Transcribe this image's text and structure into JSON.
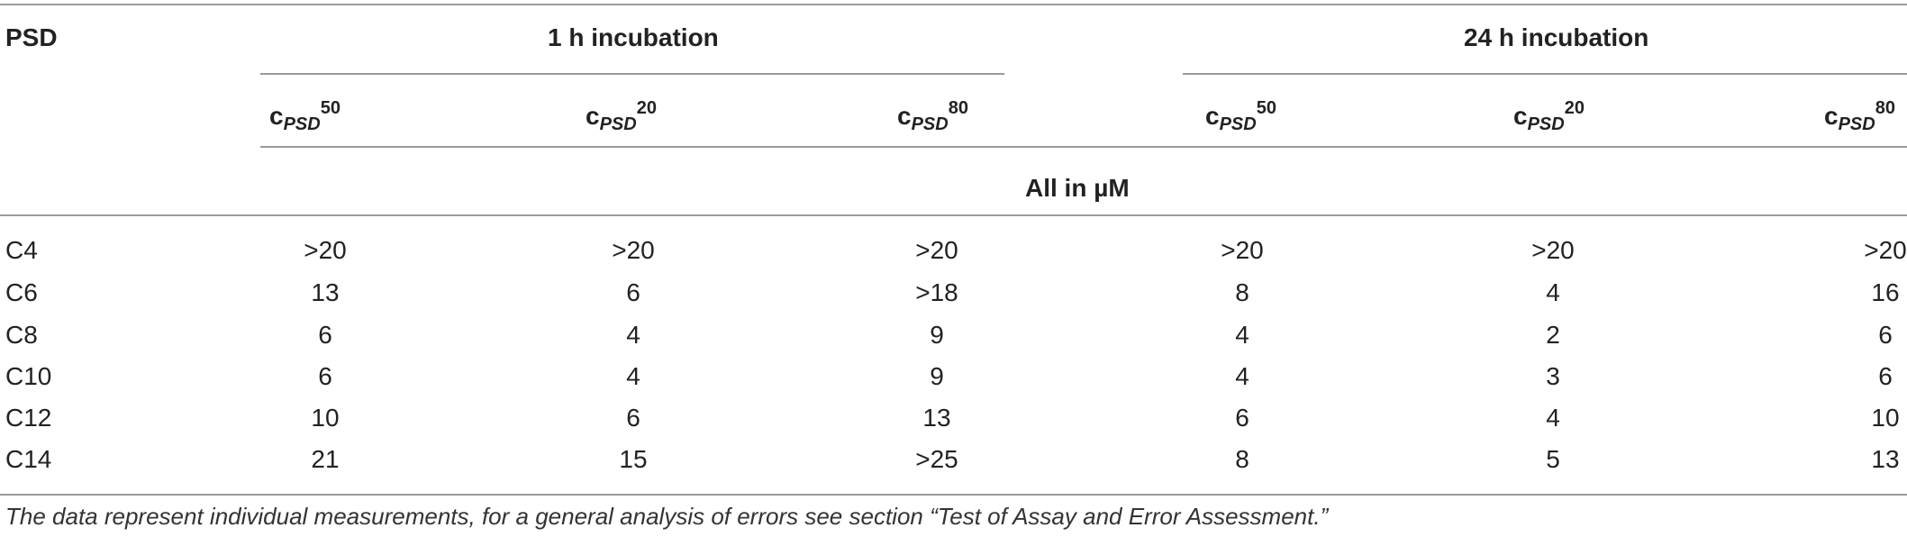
{
  "table": {
    "row_header": "PSD",
    "groups": [
      {
        "label": "1 h incubation"
      },
      {
        "label": "24 h incubation"
      }
    ],
    "subcolumns": [
      {
        "base": "c",
        "sub": "PSD",
        "sup": "50"
      },
      {
        "base": "c",
        "sub": "PSD",
        "sup": "20"
      },
      {
        "base": "c",
        "sub": "PSD",
        "sup": "80"
      },
      {
        "base": "c",
        "sub": "PSD",
        "sup": "50"
      },
      {
        "base": "c",
        "sub": "PSD",
        "sup": "20"
      },
      {
        "base": "c",
        "sub": "PSD",
        "sup": "80"
      }
    ],
    "units_label": "All in µM",
    "rows": [
      {
        "label": "C4",
        "values": [
          ">20",
          ">20",
          ">20",
          ">20",
          ">20",
          ">20"
        ]
      },
      {
        "label": "C6",
        "values": [
          "13",
          "6",
          ">18",
          "8",
          "4",
          "16"
        ]
      },
      {
        "label": "C8",
        "values": [
          "6",
          "4",
          "9",
          "4",
          "2",
          "6"
        ]
      },
      {
        "label": "C10",
        "values": [
          "6",
          "4",
          "9",
          "4",
          "3",
          "6"
        ]
      },
      {
        "label": "C12",
        "values": [
          "10",
          "6",
          "13",
          "6",
          "4",
          "10"
        ]
      },
      {
        "label": "C14",
        "values": [
          "21",
          "15",
          ">25",
          "8",
          "5",
          "13"
        ]
      }
    ],
    "footnote": "The data represent individual measurements, for a general analysis of errors see section “Test of Assay and Error Assessment.”"
  }
}
